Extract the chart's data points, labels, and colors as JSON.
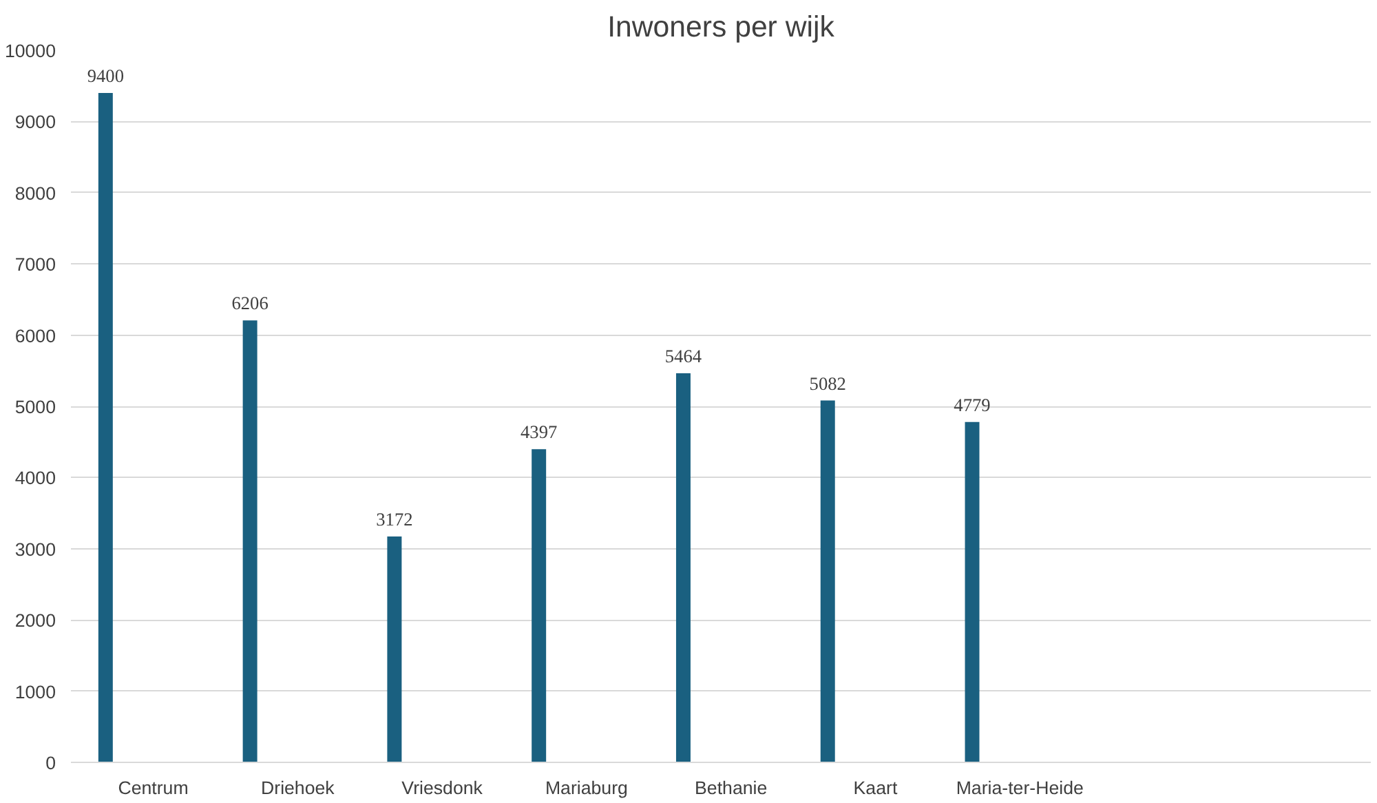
{
  "chart_data": {
    "type": "bar",
    "title": "Inwoners per wijk",
    "categories": [
      "Centrum",
      "Driehoek",
      "Vriesdonk",
      "Mariaburg",
      "Bethanie",
      "Kaart",
      "Maria-ter-Heide",
      null,
      null
    ],
    "values": [
      9400,
      6206,
      3172,
      4397,
      5464,
      5082,
      4779,
      null,
      null
    ],
    "color": "#1a6080",
    "ylim": [
      0,
      10000
    ],
    "yticks": [
      0,
      1000,
      2000,
      3000,
      4000,
      5000,
      6000,
      7000,
      8000,
      9000,
      10000
    ],
    "grid": "y",
    "data_labels": true
  }
}
